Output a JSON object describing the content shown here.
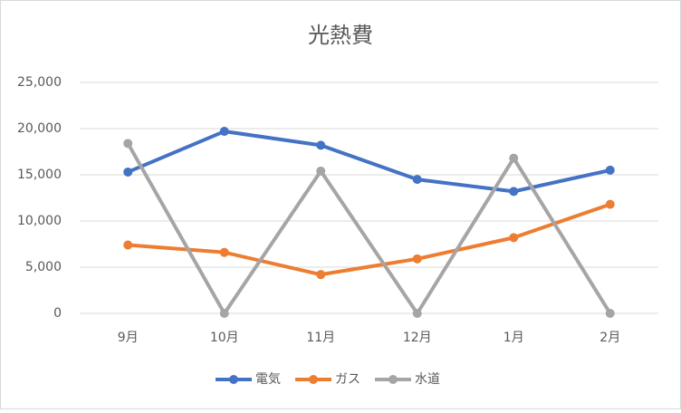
{
  "chart_data": {
    "type": "line",
    "title": "光熱費",
    "categories": [
      "9月",
      "10月",
      "11月",
      "12月",
      "1月",
      "2月"
    ],
    "series": [
      {
        "name": "電気",
        "color": "#4472c4",
        "values": [
          15300,
          19700,
          18200,
          14500,
          13200,
          15500
        ]
      },
      {
        "name": "ガス",
        "color": "#ed7d31",
        "values": [
          7400,
          6600,
          4200,
          5900,
          8200,
          11800
        ]
      },
      {
        "name": "水道",
        "color": "#a5a5a5",
        "values": [
          18400,
          0,
          15400,
          0,
          16800,
          0
        ]
      }
    ],
    "ylim": [
      0,
      25000
    ],
    "yticks": [
      0,
      {
        "value": 5000,
        "label": "5,000"
      },
      {
        "value": 10000,
        "label": "10,000"
      },
      {
        "value": 15000,
        "label": "15,000"
      },
      {
        "value": 20000,
        "label": "20,000"
      },
      {
        "value": 25000,
        "label": "25,000"
      }
    ],
    "grid": true,
    "legend": "bottom"
  }
}
